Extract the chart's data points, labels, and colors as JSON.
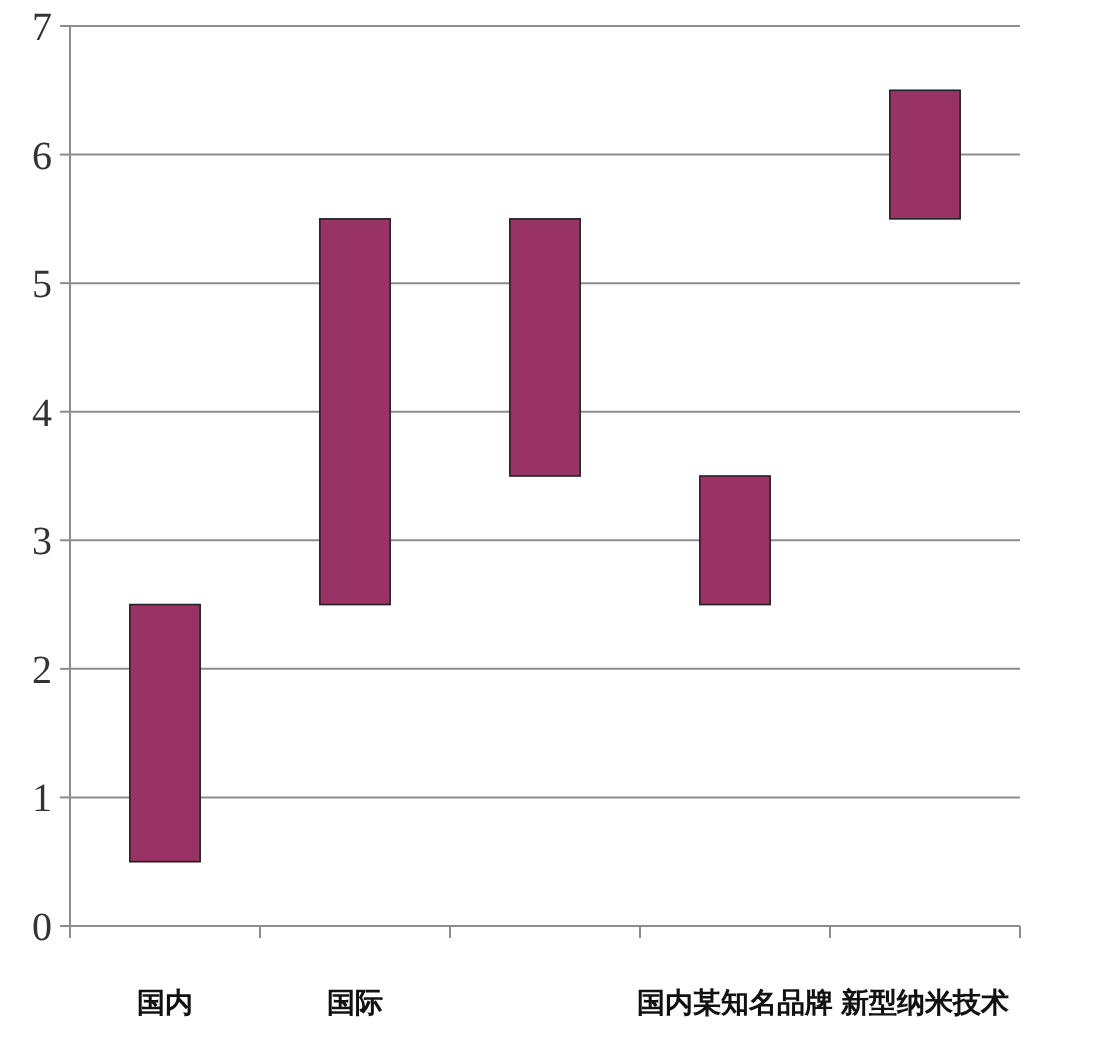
{
  "chart_data": {
    "type": "bar",
    "categories": [
      "国内",
      "国际",
      null,
      "国内某知名品牌",
      "新型纳米技术"
    ],
    "base": [
      0.5,
      2.5,
      3.5,
      2.5,
      5.5
    ],
    "values": [
      2,
      3,
      2,
      1,
      1
    ],
    "color": "#993366",
    "ylim": [
      0,
      7
    ],
    "yticks": [
      0,
      1,
      2,
      3,
      4,
      5,
      6,
      7
    ],
    "grid": "y"
  }
}
